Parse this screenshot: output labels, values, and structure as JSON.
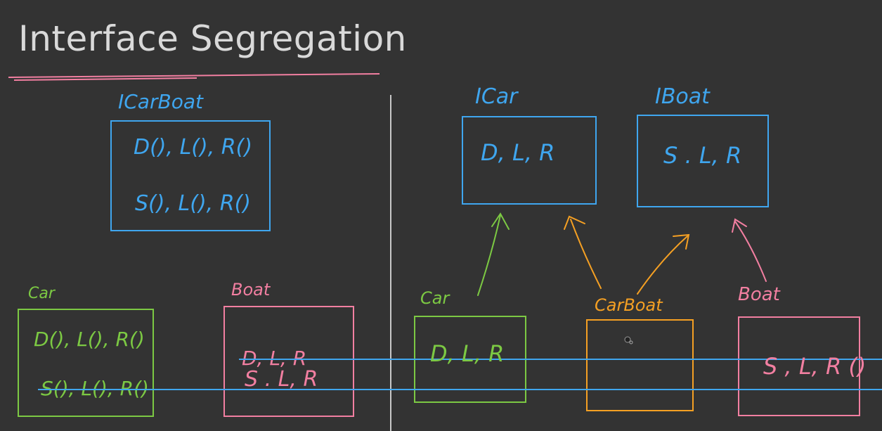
{
  "title": "Interface Segregation",
  "left": {
    "interface": {
      "name": "ICarBoat",
      "line1": "D(), L(), R()",
      "line2": "S(), L(), R()"
    },
    "car": {
      "name": "Car",
      "line1": "D(), L(), R()",
      "line2": "S(), L(), R()"
    },
    "boat": {
      "name": "Boat",
      "line1": "D, L, R",
      "line2": "S . L, R"
    }
  },
  "right": {
    "icar": {
      "name": "ICar",
      "methods": "D, L, R"
    },
    "iboat": {
      "name": "IBoat",
      "methods": "S . L, R"
    },
    "car": {
      "name": "Car",
      "methods": "D, L, R"
    },
    "carboat": {
      "name": "CarBoat"
    },
    "boat": {
      "name": "Boat",
      "methods": "S , L, R ()"
    }
  },
  "colors": {
    "background": "#333333",
    "title": "#d9d9d9",
    "underline": "#f27fa1",
    "divider": "#c8c8c8",
    "blue": "#3fa6ef",
    "green": "#7cc943",
    "pink": "#f27fa1",
    "orange": "#f5a023"
  }
}
